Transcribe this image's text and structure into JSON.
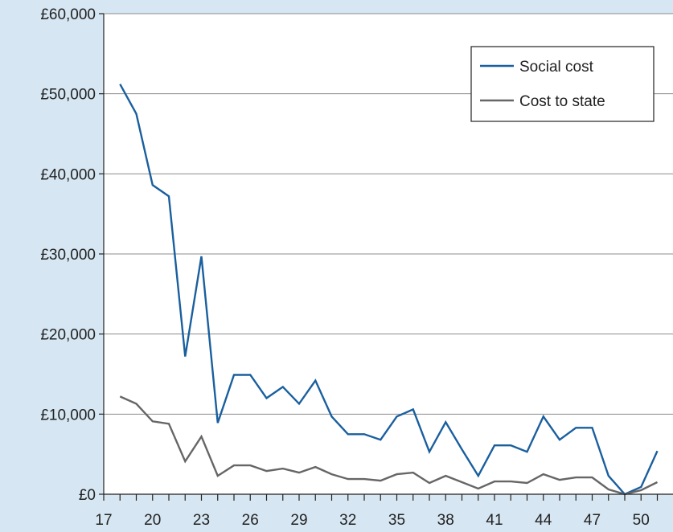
{
  "chart_data": {
    "type": "line",
    "title": "",
    "xlabel": "",
    "ylabel": "",
    "x": [
      18,
      19,
      20,
      21,
      22,
      23,
      24,
      25,
      26,
      27,
      28,
      29,
      30,
      31,
      32,
      33,
      34,
      35,
      36,
      37,
      38,
      39,
      40,
      41,
      42,
      43,
      44,
      45,
      46,
      47,
      48,
      49,
      50,
      51
    ],
    "xlim": [
      17,
      51
    ],
    "x_tick_labels": [
      "17",
      "20",
      "23",
      "26",
      "29",
      "32",
      "35",
      "38",
      "41",
      "44",
      "47",
      "50"
    ],
    "ylim": [
      0,
      60000
    ],
    "y_tick_labels": [
      "£0",
      "£10,000",
      "£20,000",
      "£30,000",
      "£40,000",
      "£50,000",
      "£60,000"
    ],
    "grid": "horizontal",
    "legend_position": "top-right",
    "series": [
      {
        "name": "Social cost",
        "color": "#1a5f9e",
        "values": [
          51200,
          47500,
          38600,
          37200,
          17200,
          29700,
          8900,
          14900,
          14900,
          12000,
          13400,
          11300,
          14200,
          9700,
          7500,
          7500,
          6800,
          9700,
          10600,
          5300,
          9000,
          5600,
          2300,
          6100,
          6100,
          5300,
          9700,
          6800,
          8300,
          8300,
          2300,
          0,
          900,
          5400
        ]
      },
      {
        "name": "Cost to state",
        "color": "#666666",
        "values": [
          12200,
          11300,
          9100,
          8800,
          4100,
          7200,
          2300,
          3600,
          3600,
          2900,
          3200,
          2700,
          3400,
          2500,
          1900,
          1900,
          1700,
          2500,
          2700,
          1400,
          2300,
          1500,
          700,
          1600,
          1600,
          1400,
          2500,
          1800,
          2100,
          2100,
          600,
          0,
          500,
          1500
        ]
      }
    ]
  }
}
